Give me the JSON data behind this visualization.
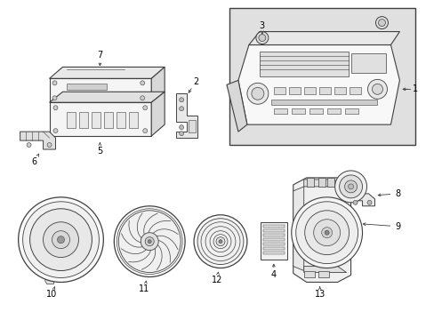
{
  "background_color": "#ffffff",
  "line_color": "#404040",
  "label_color": "#000000",
  "shade_color": "#d8d8d8",
  "light_shade": "#eeeeee",
  "box_bg": "#e8e8e8"
}
